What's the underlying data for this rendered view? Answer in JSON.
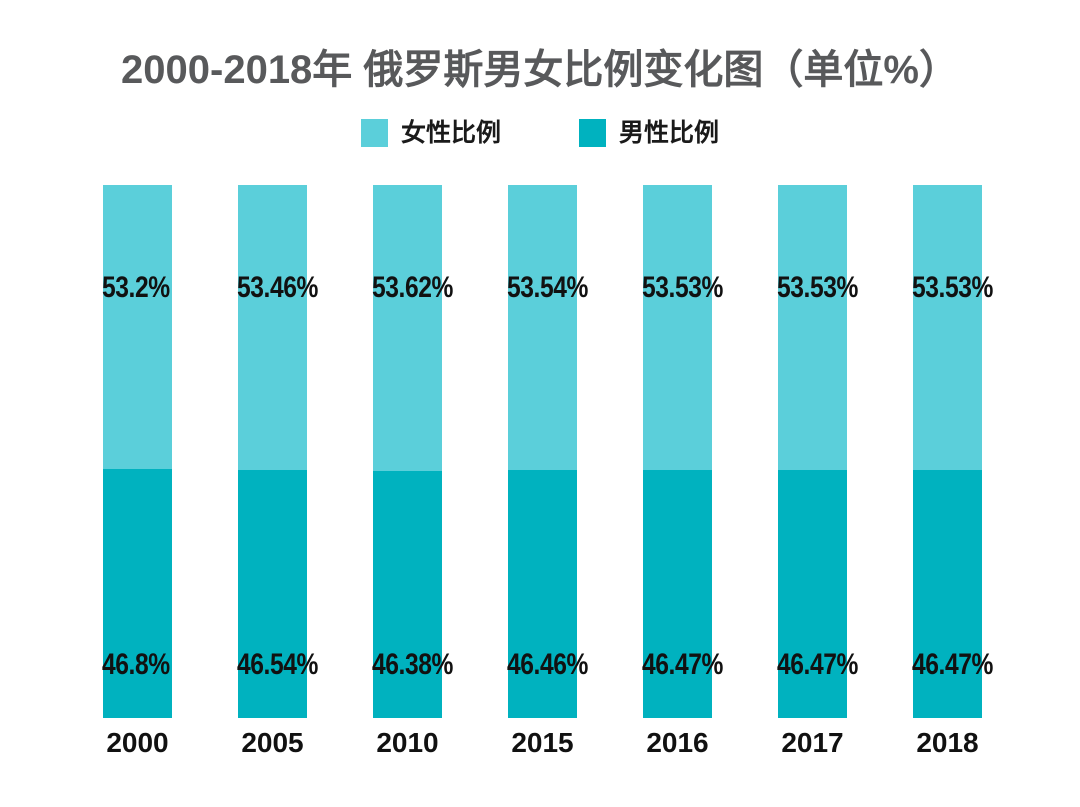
{
  "title": "2000-2018年 俄罗斯男女比例变化图（单位%）",
  "colors": {
    "female": "#5bcfda",
    "male": "#00b2bf",
    "title_text": "#58595b",
    "label_text": "#111111",
    "background": "#ffffff"
  },
  "legend": [
    {
      "label": "女性比例",
      "color": "#5bcfda"
    },
    {
      "label": "男性比例",
      "color": "#00b2bf"
    }
  ],
  "chart_data": {
    "type": "bar",
    "stacked": true,
    "orientation": "vertical",
    "title": "2000-2018年 俄罗斯男女比例变化图（单位%）",
    "xlabel": "",
    "ylabel": "",
    "ylim": [
      0,
      100
    ],
    "grid": false,
    "legend_position": "top",
    "categories": [
      "2000",
      "2005",
      "2010",
      "2015",
      "2016",
      "2017",
      "2018"
    ],
    "series": [
      {
        "name": "女性比例",
        "color": "#5bcfda",
        "values": [
          53.2,
          53.46,
          53.62,
          53.54,
          53.53,
          53.53,
          53.53
        ],
        "labels": [
          "53.2%",
          "53.46%",
          "53.62%",
          "53.54%",
          "53.53%",
          "53.53%",
          "53.53%"
        ]
      },
      {
        "name": "男性比例",
        "color": "#00b2bf",
        "values": [
          46.8,
          46.54,
          46.38,
          46.46,
          46.47,
          46.47,
          46.47
        ],
        "labels": [
          "46.8%",
          "46.54%",
          "46.38%",
          "46.46%",
          "46.47%",
          "46.47%",
          "46.47%"
        ]
      }
    ]
  }
}
